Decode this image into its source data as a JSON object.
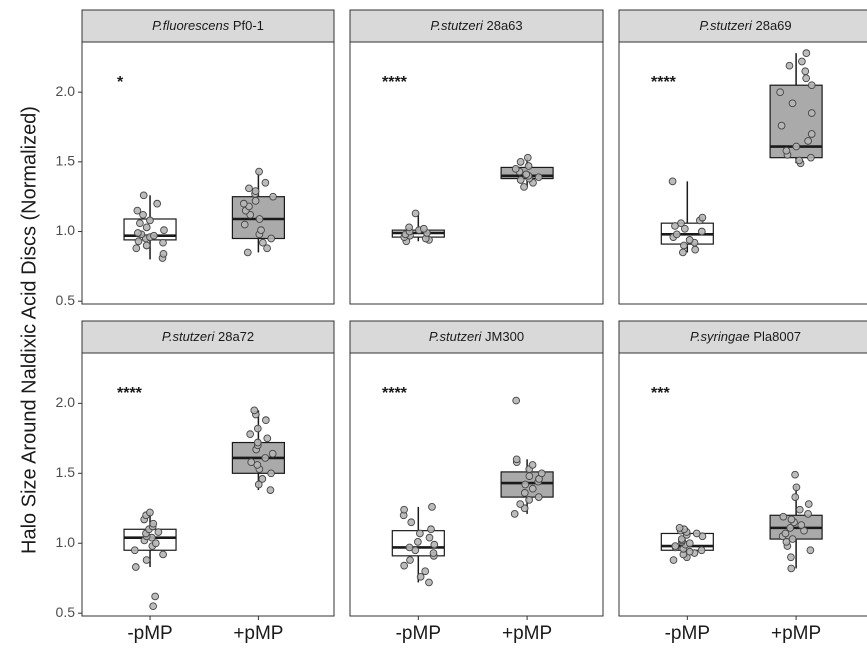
{
  "chart_data": {
    "type": "box",
    "ylabel": "Halo Size Around Naldixic Acid Discs (Normalized)",
    "categories": [
      "-pMP",
      "+pMP"
    ],
    "yticks": [
      "0.5",
      "1.0",
      "1.5",
      "2.0"
    ],
    "ylim": [
      0.48,
      2.36
    ],
    "colors": {
      "minus": "#ffffff",
      "plus": "#aaaaaa",
      "point": "#b5b5b5",
      "strip": "#d9d9d9"
    },
    "panels": [
      {
        "species": "P.fluorescens",
        "strain": "Pf0-1",
        "significance": "*",
        "boxes": [
          {
            "group": "-pMP",
            "q1": 0.94,
            "median": 0.97,
            "q3": 1.09,
            "whisker_low": 0.8,
            "whisker_high": 1.26,
            "points": [
              0.81,
              0.84,
              0.88,
              0.9,
              0.92,
              0.93,
              0.95,
              0.96,
              0.97,
              0.98,
              0.99,
              1.01,
              1.03,
              1.06,
              1.08,
              1.12,
              1.15,
              1.2,
              1.26
            ]
          },
          {
            "group": "+pMP",
            "q1": 0.95,
            "median": 1.09,
            "q3": 1.25,
            "whisker_low": 0.85,
            "whisker_high": 1.43,
            "points": [
              0.85,
              0.88,
              0.92,
              0.95,
              0.98,
              1.01,
              1.05,
              1.09,
              1.12,
              1.15,
              1.18,
              1.2,
              1.22,
              1.25,
              1.27,
              1.29,
              1.31,
              1.35,
              1.43
            ]
          }
        ]
      },
      {
        "species": "P.stutzeri",
        "strain": "28a63",
        "significance": "****",
        "boxes": [
          {
            "group": "-pMP",
            "q1": 0.96,
            "median": 0.99,
            "q3": 1.01,
            "whisker_low": 0.93,
            "whisker_high": 1.13,
            "points": [
              0.93,
              0.94,
              0.95,
              0.96,
              0.97,
              0.98,
              0.99,
              1.0,
              1.01,
              1.02,
              1.03,
              1.13
            ]
          },
          {
            "group": "+pMP",
            "q1": 1.38,
            "median": 1.4,
            "q3": 1.46,
            "whisker_low": 1.32,
            "whisker_high": 1.53,
            "points": [
              1.32,
              1.35,
              1.37,
              1.38,
              1.39,
              1.4,
              1.41,
              1.43,
              1.45,
              1.47,
              1.5,
              1.53
            ]
          }
        ]
      },
      {
        "species": "P.stutzeri",
        "strain": "28a69",
        "significance": "****",
        "boxes": [
          {
            "group": "-pMP",
            "q1": 0.91,
            "median": 0.98,
            "q3": 1.06,
            "whisker_low": 0.85,
            "whisker_high": 1.36,
            "points": [
              0.85,
              0.87,
              0.9,
              0.92,
              0.94,
              0.96,
              0.98,
              1.0,
              1.02,
              1.04,
              1.06,
              1.08,
              1.1,
              1.36
            ]
          },
          {
            "group": "+pMP",
            "q1": 1.53,
            "median": 1.61,
            "q3": 2.05,
            "whisker_low": 1.49,
            "whisker_high": 2.28,
            "points": [
              1.49,
              1.51,
              1.53,
              1.55,
              1.58,
              1.61,
              1.65,
              1.7,
              1.76,
              1.85,
              1.92,
              2.0,
              2.05,
              2.1,
              2.15,
              2.19,
              2.22,
              2.28
            ]
          }
        ]
      },
      {
        "species": "P.stutzeri",
        "strain": "28a72",
        "significance": "****",
        "boxes": [
          {
            "group": "-pMP",
            "q1": 0.95,
            "median": 1.04,
            "q3": 1.1,
            "whisker_low": 0.83,
            "whisker_high": 1.22,
            "points": [
              0.55,
              0.62,
              0.83,
              0.88,
              0.92,
              0.95,
              0.98,
              1.0,
              1.02,
              1.04,
              1.05,
              1.07,
              1.08,
              1.1,
              1.12,
              1.14,
              1.17,
              1.2,
              1.22
            ]
          },
          {
            "group": "+pMP",
            "q1": 1.5,
            "median": 1.61,
            "q3": 1.72,
            "whisker_low": 1.38,
            "whisker_high": 1.95,
            "points": [
              1.38,
              1.42,
              1.46,
              1.5,
              1.53,
              1.56,
              1.58,
              1.61,
              1.64,
              1.67,
              1.7,
              1.72,
              1.75,
              1.78,
              1.82,
              1.88,
              1.92,
              1.95
            ]
          }
        ]
      },
      {
        "species": "P.stutzeri",
        "strain": "JM300",
        "significance": "****",
        "boxes": [
          {
            "group": "-pMP",
            "q1": 0.91,
            "median": 0.97,
            "q3": 1.09,
            "whisker_low": 0.72,
            "whisker_high": 1.26,
            "points": [
              0.72,
              0.76,
              0.8,
              0.84,
              0.88,
              0.91,
              0.93,
              0.95,
              0.97,
              0.99,
              1.01,
              1.04,
              1.07,
              1.1,
              1.15,
              1.2,
              1.24,
              1.26
            ]
          },
          {
            "group": "+pMP",
            "q1": 1.33,
            "median": 1.43,
            "q3": 1.51,
            "whisker_low": 1.21,
            "whisker_high": 1.6,
            "points": [
              1.21,
              1.25,
              1.28,
              1.31,
              1.33,
              1.36,
              1.39,
              1.42,
              1.44,
              1.46,
              1.48,
              1.5,
              1.53,
              1.56,
              1.58,
              1.6,
              2.02
            ]
          }
        ]
      },
      {
        "species": "P.syringae",
        "strain": "Pla8007",
        "significance": "***",
        "boxes": [
          {
            "group": "-pMP",
            "q1": 0.95,
            "median": 0.98,
            "q3": 1.07,
            "whisker_low": 0.88,
            "whisker_high": 1.11,
            "points": [
              0.88,
              0.9,
              0.92,
              0.93,
              0.94,
              0.95,
              0.96,
              0.97,
              0.98,
              0.99,
              1.0,
              1.01,
              1.02,
              1.03,
              1.05,
              1.06,
              1.07,
              1.08,
              1.09,
              1.1,
              1.11
            ]
          },
          {
            "group": "+pMP",
            "q1": 1.03,
            "median": 1.11,
            "q3": 1.2,
            "whisker_low": 0.82,
            "whisker_high": 1.41,
            "points": [
              0.82,
              0.9,
              0.95,
              0.98,
              1.01,
              1.03,
              1.05,
              1.07,
              1.09,
              1.11,
              1.13,
              1.15,
              1.17,
              1.19,
              1.21,
              1.24,
              1.28,
              1.33,
              1.4,
              1.49
            ]
          }
        ]
      }
    ]
  }
}
